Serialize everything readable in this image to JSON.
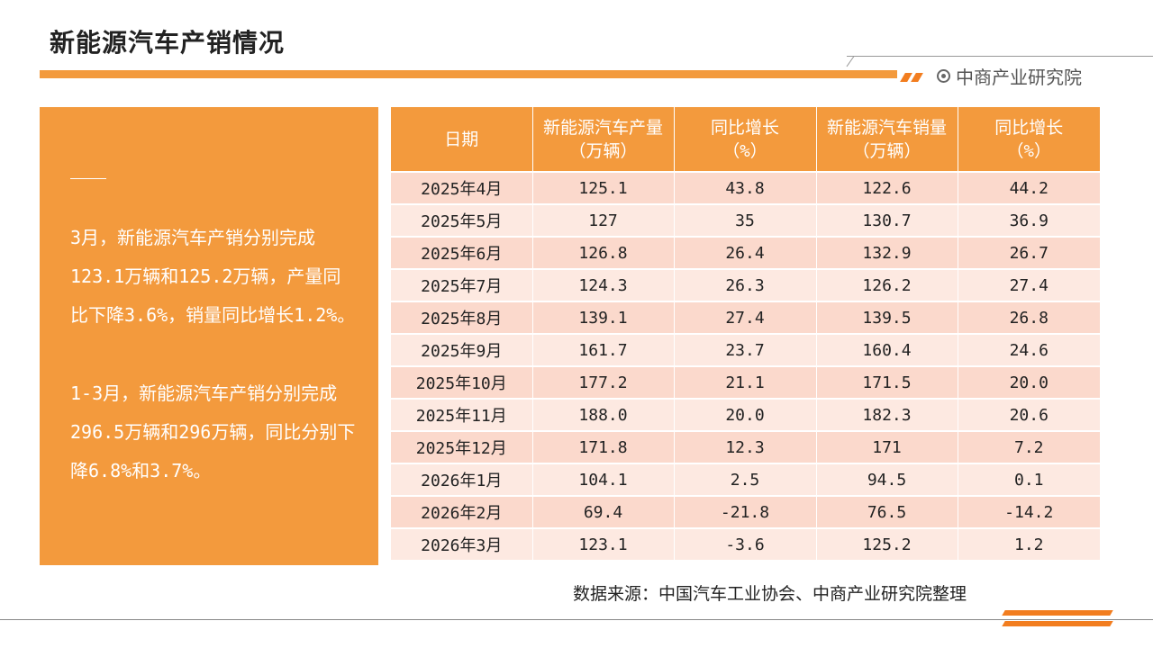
{
  "title": "新能源汽车产销情况",
  "brand": "中商产业研究院",
  "summary": [
    "3月，新能源汽车产销分别完成123.1万辆和125.2万辆，产量同比下降3.6%，销量同比增长1.2%。",
    "1-3月，新能源汽车产销分别完成296.5万辆和296万辆，同比分别下降6.8%和3.7%。"
  ],
  "table": {
    "headers": [
      [
        "日期"
      ],
      [
        "新能源汽车产量",
        "（万辆）"
      ],
      [
        "同比增长",
        "（%）"
      ],
      [
        "新能源汽车销量",
        "（万辆）"
      ],
      [
        "同比增长",
        "（%）"
      ]
    ],
    "rows": [
      [
        "2025年4月",
        "125.1",
        "43.8",
        "122.6",
        "44.2"
      ],
      [
        "2025年5月",
        "127",
        "35",
        "130.7",
        "36.9"
      ],
      [
        "2025年6月",
        "126.8",
        "26.4",
        "132.9",
        "26.7"
      ],
      [
        "2025年7月",
        "124.3",
        "26.3",
        "126.2",
        "27.4"
      ],
      [
        "2025年8月",
        "139.1",
        "27.4",
        "139.5",
        "26.8"
      ],
      [
        "2025年9月",
        "161.7",
        "23.7",
        "160.4",
        "24.6"
      ],
      [
        "2025年10月",
        "177.2",
        "21.1",
        "171.5",
        "20.0"
      ],
      [
        "2025年11月",
        "188.0",
        "20.0",
        "182.3",
        "20.6"
      ],
      [
        "2025年12月",
        "171.8",
        "12.3",
        "171",
        "7.2"
      ],
      [
        "2026年1月",
        "104.1",
        "2.5",
        "94.5",
        "0.1"
      ],
      [
        "2026年2月",
        "69.4",
        "-21.8",
        "76.5",
        "-14.2"
      ],
      [
        "2026年3月",
        "123.1",
        "-3.6",
        "125.2",
        "1.2"
      ]
    ]
  },
  "source": "数据来源：中国汽车工业协会、中商产业研究院整理",
  "colors": {
    "accent": "#f39a3d",
    "row_odd": "#fbd9cc",
    "row_even": "#fde9e1"
  }
}
